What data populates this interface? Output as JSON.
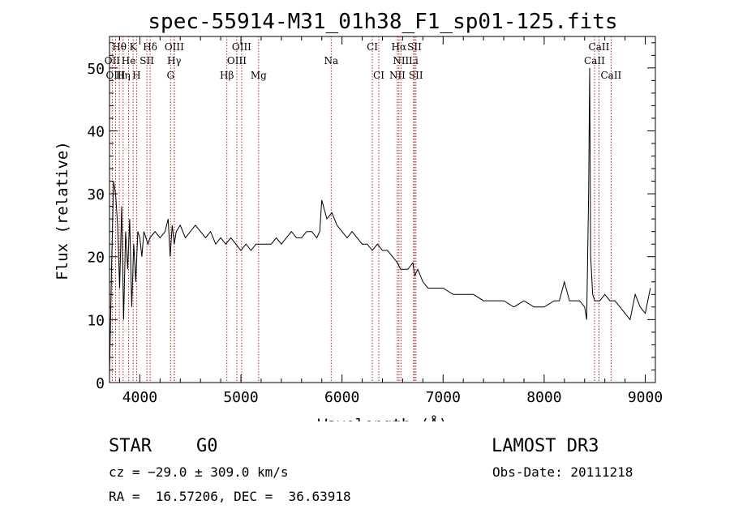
{
  "chart_data": {
    "type": "line",
    "title": "spec-55914-M31_01h38_F1_sp01-125.fits",
    "xlabel": "Wavelength (Å)",
    "ylabel": "Flux (relative)",
    "xlim": [
      3700,
      9100
    ],
    "ylim": [
      0,
      55
    ],
    "xticks": [
      4000,
      5000,
      6000,
      7000,
      8000,
      9000
    ],
    "yticks": [
      0,
      10,
      20,
      30,
      40,
      50
    ],
    "grid": false,
    "series": [
      {
        "name": "flux",
        "x": [
          3700,
          3720,
          3740,
          3760,
          3780,
          3800,
          3820,
          3840,
          3860,
          3880,
          3900,
          3920,
          3940,
          3960,
          3980,
          4000,
          4020,
          4040,
          4060,
          4080,
          4100,
          4150,
          4200,
          4250,
          4280,
          4300,
          4320,
          4340,
          4360,
          4400,
          4450,
          4500,
          4550,
          4600,
          4650,
          4700,
          4750,
          4800,
          4850,
          4900,
          4950,
          5000,
          5050,
          5100,
          5150,
          5200,
          5250,
          5300,
          5350,
          5400,
          5450,
          5500,
          5550,
          5600,
          5650,
          5700,
          5750,
          5780,
          5800,
          5850,
          5900,
          5950,
          6000,
          6050,
          6100,
          6150,
          6200,
          6250,
          6300,
          6350,
          6400,
          6450,
          6500,
          6550,
          6580,
          6600,
          6650,
          6700,
          6720,
          6750,
          6800,
          6850,
          6900,
          6950,
          7000,
          7100,
          7200,
          7300,
          7400,
          7500,
          7600,
          7700,
          7800,
          7900,
          8000,
          8100,
          8150,
          8200,
          8250,
          8300,
          8350,
          8400,
          8420,
          8440,
          8450,
          8460,
          8480,
          8500,
          8550,
          8600,
          8650,
          8700,
          8750,
          8800,
          8850,
          8900,
          8950,
          9000,
          9050
        ],
        "y": [
          1,
          18,
          32,
          30,
          25,
          15,
          28,
          10,
          24,
          18,
          26,
          12,
          22,
          16,
          24,
          23,
          20,
          24,
          23,
          22,
          23,
          24,
          23,
          24,
          26,
          20,
          25,
          22,
          24,
          25,
          23,
          24,
          25,
          24,
          23,
          24,
          22,
          23,
          22,
          23,
          22,
          21,
          22,
          21,
          22,
          22,
          22,
          22,
          23,
          22,
          23,
          24,
          23,
          23,
          24,
          24,
          23,
          24,
          29,
          26,
          27,
          25,
          24,
          23,
          24,
          23,
          22,
          22,
          21,
          22,
          21,
          21,
          20,
          19,
          18,
          18,
          18,
          19,
          17,
          18,
          16,
          15,
          15,
          15,
          15,
          14,
          14,
          14,
          13,
          13,
          13,
          12,
          13,
          12,
          12,
          13,
          13,
          16,
          13,
          13,
          13,
          12,
          10,
          30,
          50,
          20,
          14,
          13,
          13,
          14,
          13,
          13,
          12,
          11,
          10,
          14,
          12,
          11,
          15
        ]
      }
    ],
    "line_labels": [
      {
        "text": "Hθ",
        "x": 3797,
        "row": 1
      },
      {
        "text": "K",
        "x": 3934,
        "row": 1
      },
      {
        "text": "Hδ",
        "x": 4102,
        "row": 1
      },
      {
        "text": "OIII",
        "x": 4341,
        "row": 1
      },
      {
        "text": "OIII",
        "x": 5007,
        "row": 1
      },
      {
        "text": "CI",
        "x": 6300,
        "row": 1
      },
      {
        "text": "Hα",
        "x": 6563,
        "row": 1
      },
      {
        "text": "SII",
        "x": 6717,
        "row": 1
      },
      {
        "text": "CaII",
        "x": 8542,
        "row": 1
      },
      {
        "text": "OII",
        "x": 3727,
        "row": 2
      },
      {
        "text": "He",
        "x": 3889,
        "row": 2
      },
      {
        "text": "SII",
        "x": 4070,
        "row": 2
      },
      {
        "text": "Hγ",
        "x": 4340,
        "row": 2
      },
      {
        "text": "OIII",
        "x": 4959,
        "row": 2
      },
      {
        "text": "Na",
        "x": 5893,
        "row": 2
      },
      {
        "text": "NII",
        "x": 6583,
        "row": 2
      },
      {
        "text": "Li",
        "x": 6708,
        "row": 2
      },
      {
        "text": "CaII",
        "x": 8498,
        "row": 2
      },
      {
        "text": "OIII",
        "x": 3760,
        "row": 3
      },
      {
        "text": "Hη",
        "x": 3835,
        "row": 3
      },
      {
        "text": "H",
        "x": 3968,
        "row": 3
      },
      {
        "text": "G",
        "x": 4304,
        "row": 3
      },
      {
        "text": "Hβ",
        "x": 4861,
        "row": 3
      },
      {
        "text": "Mg",
        "x": 5175,
        "row": 3
      },
      {
        "text": "CI",
        "x": 6364,
        "row": 3
      },
      {
        "text": "NII",
        "x": 6548,
        "row": 3
      },
      {
        "text": "SII",
        "x": 6731,
        "row": 3
      },
      {
        "text": "CaII",
        "x": 8662,
        "row": 3
      }
    ],
    "line_positions": [
      3727,
      3760,
      3797,
      3835,
      3889,
      3934,
      3968,
      4070,
      4102,
      4304,
      4340,
      4341,
      4861,
      4959,
      5007,
      5175,
      5893,
      6300,
      6364,
      6548,
      6563,
      6583,
      6708,
      6717,
      6731,
      8498,
      8542,
      8662
    ],
    "line_color": "#b22222"
  },
  "footer": {
    "object_class": "STAR",
    "subclass": "G0",
    "survey": "LAMOST DR3",
    "cz": "cz = −29.0 ± 309.0 km/s",
    "obs_date": "Obs-Date: 20111218",
    "radec": "RA =  16.57206, DEC =  36.63918"
  }
}
